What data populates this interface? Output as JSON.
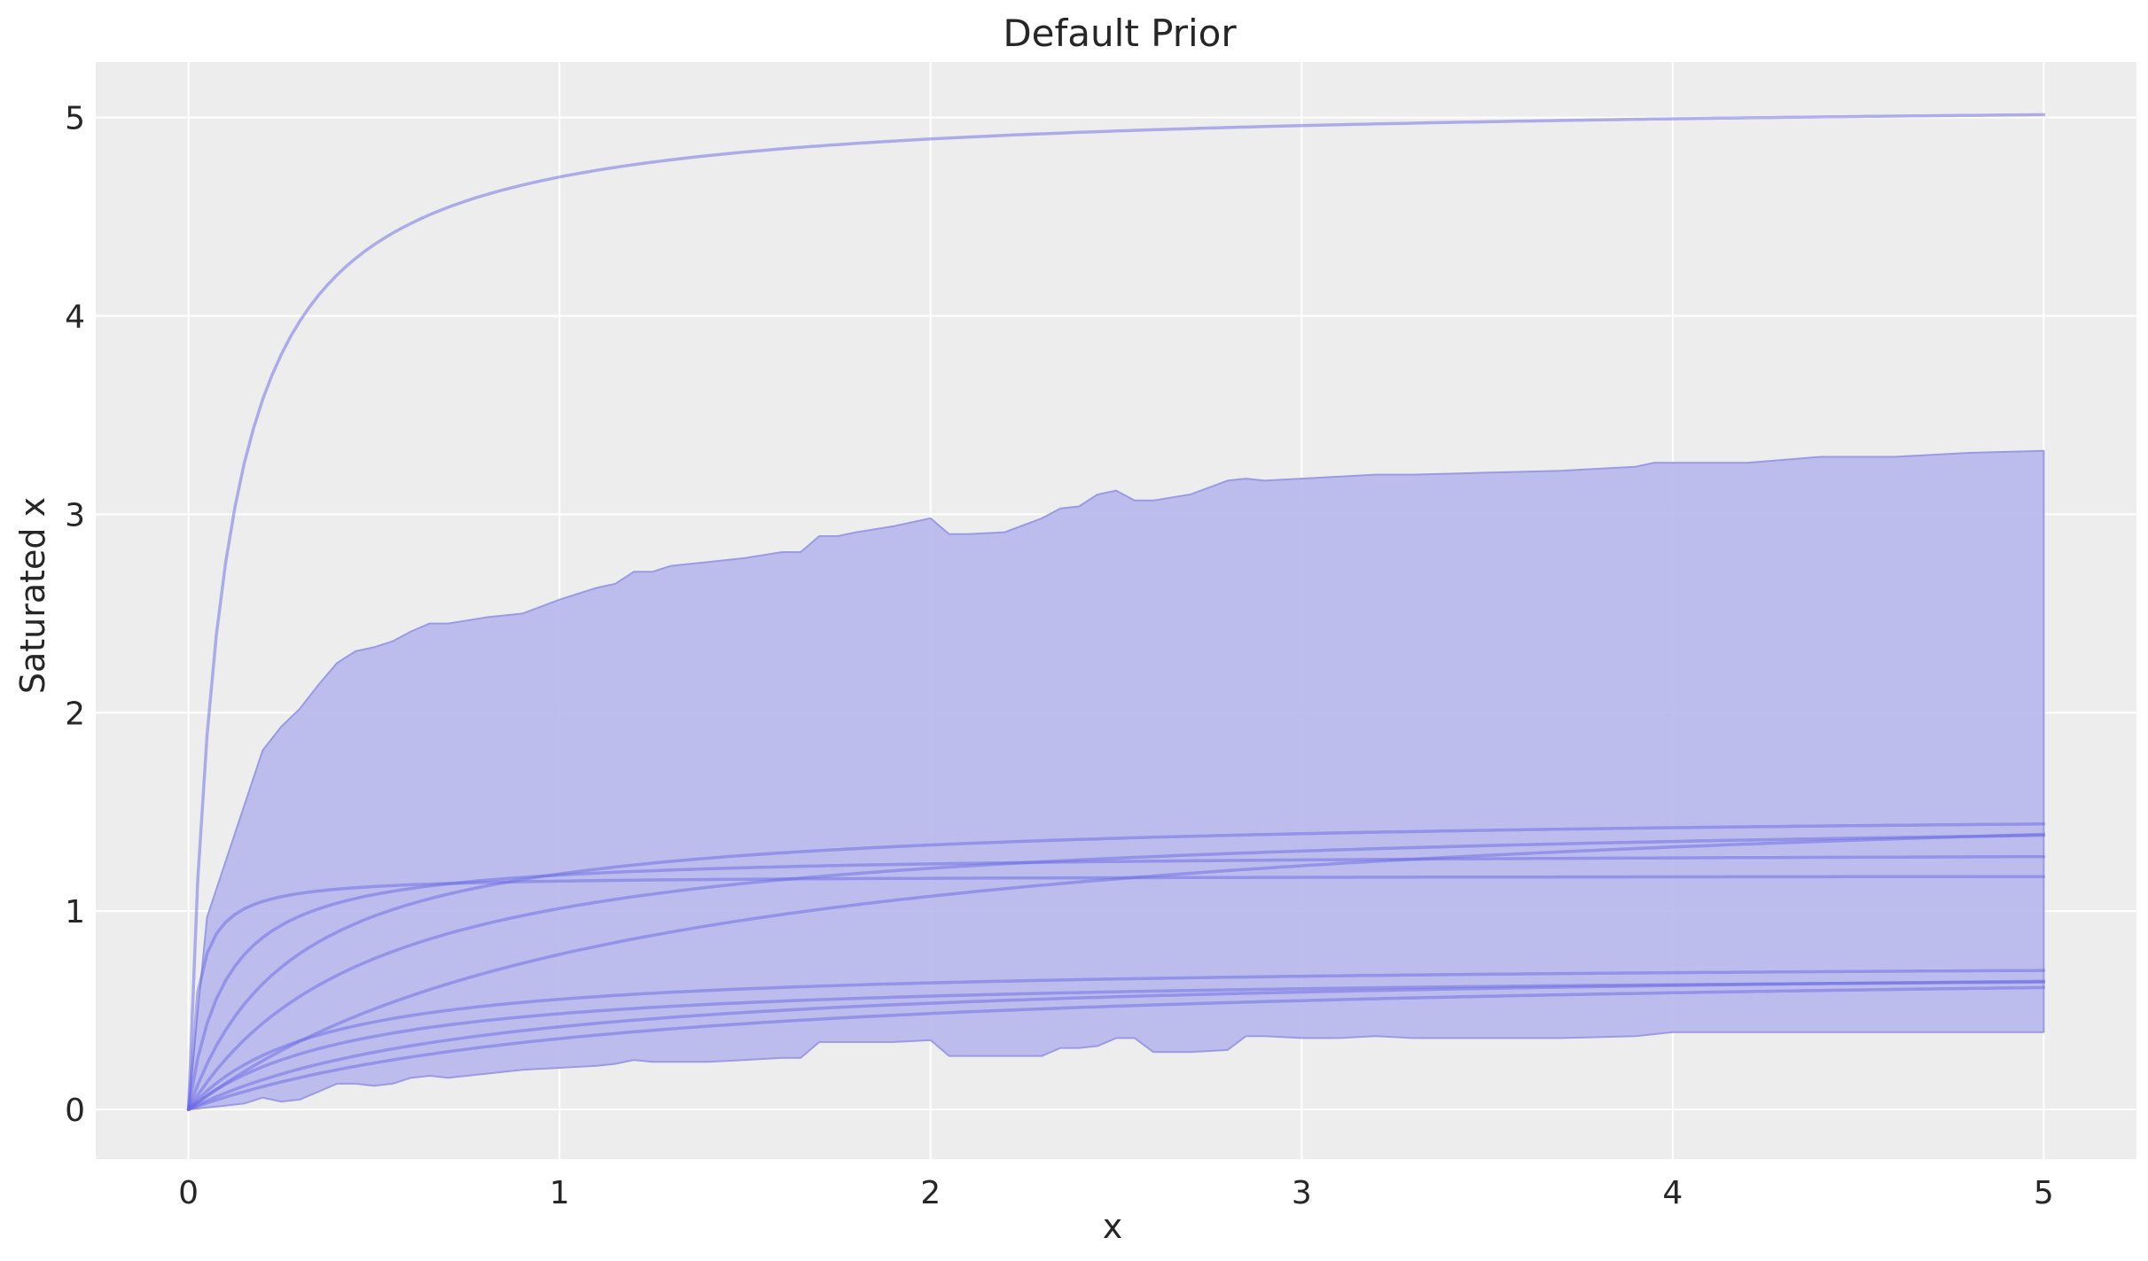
{
  "chart_data": {
    "type": "line",
    "title": "Default Prior",
    "xlabel": "x",
    "ylabel": "Saturated x",
    "xlim": [
      -0.25,
      5.25
    ],
    "ylim": [
      -0.25,
      5.28
    ],
    "x_ticks": [
      "0",
      "1",
      "2",
      "3",
      "4",
      "5"
    ],
    "y_ticks": [
      "0",
      "1",
      "2",
      "3",
      "4",
      "5"
    ],
    "grid": true,
    "colors": {
      "background": "#ffffff",
      "plot_background": "#ededed",
      "grid": "#ffffff",
      "band_fill": "#b3b3ec",
      "band_edge": "#9a9ae6",
      "line": "#6a6ae6",
      "text": "#262626"
    },
    "band": {
      "name": "",
      "x": [
        0,
        0.05,
        0.1,
        0.15,
        0.2,
        0.25,
        0.3,
        0.35,
        0.4,
        0.45,
        0.5,
        0.55,
        0.6,
        0.65,
        0.7,
        0.8,
        0.9,
        1.0,
        1.1,
        1.15,
        1.2,
        1.25,
        1.3,
        1.4,
        1.5,
        1.6,
        1.65,
        1.7,
        1.75,
        1.8,
        1.9,
        2.0,
        2.05,
        2.1,
        2.2,
        2.3,
        2.35,
        2.4,
        2.45,
        2.5,
        2.55,
        2.6,
        2.7,
        2.8,
        2.85,
        2.9,
        3.0,
        3.1,
        3.2,
        3.3,
        3.5,
        3.7,
        3.9,
        3.95,
        4.0,
        4.2,
        4.4,
        4.6,
        4.8,
        5.0
      ],
      "upper": [
        0,
        0.97,
        1.25,
        1.53,
        1.81,
        1.93,
        2.02,
        2.14,
        2.25,
        2.31,
        2.33,
        2.36,
        2.41,
        2.45,
        2.45,
        2.48,
        2.5,
        2.57,
        2.63,
        2.65,
        2.71,
        2.71,
        2.74,
        2.76,
        2.78,
        2.81,
        2.81,
        2.89,
        2.89,
        2.91,
        2.94,
        2.98,
        2.9,
        2.9,
        2.91,
        2.98,
        3.03,
        3.04,
        3.1,
        3.12,
        3.07,
        3.07,
        3.1,
        3.17,
        3.18,
        3.17,
        3.18,
        3.19,
        3.2,
        3.2,
        3.21,
        3.22,
        3.24,
        3.26,
        3.26,
        3.26,
        3.29,
        3.29,
        3.31,
        3.32
      ],
      "lower": [
        0,
        0.01,
        0.02,
        0.03,
        0.06,
        0.04,
        0.05,
        0.09,
        0.13,
        0.13,
        0.12,
        0.13,
        0.16,
        0.17,
        0.16,
        0.18,
        0.2,
        0.21,
        0.22,
        0.23,
        0.25,
        0.24,
        0.24,
        0.24,
        0.25,
        0.26,
        0.26,
        0.34,
        0.34,
        0.34,
        0.34,
        0.35,
        0.27,
        0.27,
        0.27,
        0.27,
        0.31,
        0.31,
        0.32,
        0.36,
        0.36,
        0.29,
        0.29,
        0.3,
        0.37,
        0.37,
        0.36,
        0.36,
        0.37,
        0.36,
        0.36,
        0.36,
        0.37,
        0.38,
        0.39,
        0.39,
        0.39,
        0.39,
        0.39,
        0.39
      ]
    },
    "series": [
      {
        "a": 5.1,
        "b": 0.085
      },
      {
        "a": 1.18,
        "b": 0.025
      },
      {
        "a": 1.52,
        "b": 0.28
      },
      {
        "a": 1.52,
        "b": 0.5
      },
      {
        "a": 1.72,
        "b": 1.2
      },
      {
        "a": 1.3,
        "b": 0.1
      },
      {
        "a": 0.75,
        "b": 0.35
      },
      {
        "a": 0.7,
        "b": 0.45
      },
      {
        "a": 0.75,
        "b": 0.8
      },
      {
        "a": 0.75,
        "b": 1.1
      }
    ],
    "series_formula": "y = a * x / (b + x)"
  }
}
